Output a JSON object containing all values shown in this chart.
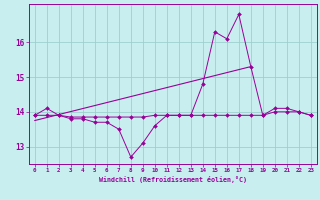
{
  "xlabel": "Windchill (Refroidissement éolien,°C)",
  "background_color": "#c8eef0",
  "grid_color": "#9ecfcf",
  "line_color": "#990099",
  "hours": [
    0,
    1,
    2,
    3,
    4,
    5,
    6,
    7,
    8,
    9,
    10,
    11,
    12,
    13,
    14,
    15,
    16,
    17,
    18,
    19,
    20,
    21,
    22,
    23
  ],
  "y_main": [
    13.9,
    14.1,
    13.9,
    13.8,
    13.8,
    13.7,
    13.7,
    13.5,
    12.7,
    13.1,
    13.6,
    13.9,
    13.9,
    13.9,
    14.8,
    16.3,
    16.1,
    16.8,
    15.3,
    13.9,
    14.1,
    14.1,
    14.0,
    13.9
  ],
  "y_flat": [
    13.9,
    13.9,
    13.9,
    13.85,
    13.85,
    13.85,
    13.85,
    13.85,
    13.85,
    13.85,
    13.9,
    13.9,
    13.9,
    13.9,
    13.9,
    13.9,
    13.9,
    13.9,
    13.9,
    13.9,
    14.0,
    14.0,
    14.0,
    13.9
  ],
  "trend_x": [
    0,
    18
  ],
  "trend_y": [
    13.75,
    15.3
  ],
  "ylim_low": 12.5,
  "ylim_high": 17.1,
  "yticks": [
    13,
    14,
    15,
    16
  ],
  "xlim_low": -0.5,
  "xlim_high": 23.5
}
